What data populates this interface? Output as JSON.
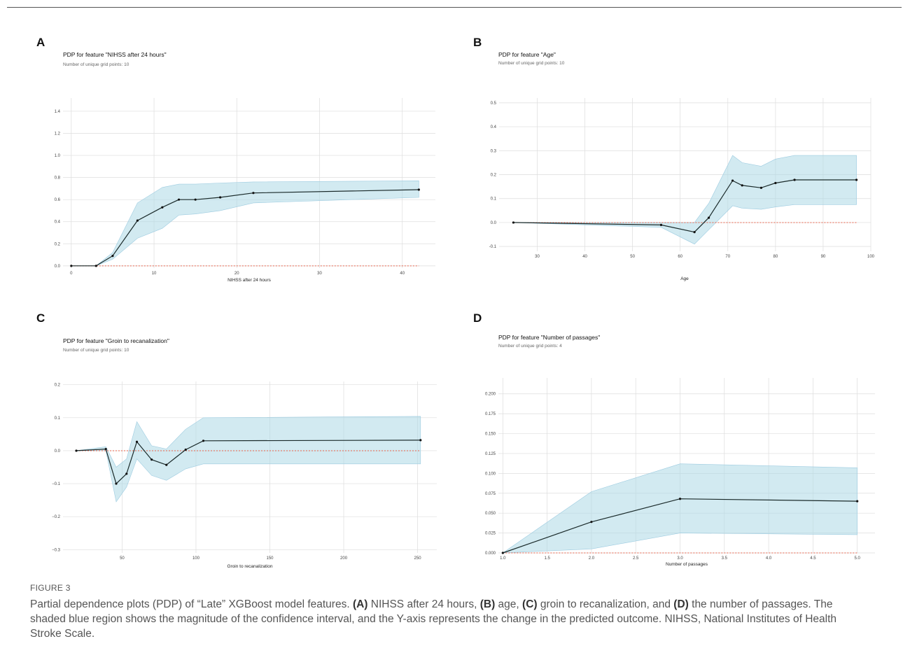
{
  "figure": {
    "label": "FIGURE 3",
    "caption": [
      {
        "t": "Partial dependence plots (PDP) of “Late” XGBoost model features. "
      },
      {
        "t": "(A)",
        "b": true
      },
      {
        "t": " NIHSS after 24 hours, "
      },
      {
        "t": "(B)",
        "b": true
      },
      {
        "t": " age, "
      },
      {
        "t": "(C)",
        "b": true
      },
      {
        "t": " groin to recanalization, and "
      },
      {
        "t": "(D)",
        "b": true
      },
      {
        "t": " the number of passages. The shaded blue region shows the magnitude of the confidence interval, and the Y-axis represents the change in the predicted outcome. NIHSS, National Institutes of Health Stroke Scale."
      }
    ]
  },
  "colors": {
    "band": "#add8e6",
    "line": "#1a2a2a",
    "zero": "#e8624a",
    "grid": "#dddddd"
  },
  "chart_data": [
    {
      "panel": "A",
      "type": "line",
      "title": "PDP for feature \"NIHSS after 24 hours\"",
      "subtitle": "Number of unique grid points: 10",
      "xlabel": "NIHSS after 24 hours",
      "ylabel": "",
      "xlim": [
        -1,
        44
      ],
      "ylim": [
        -0.02,
        1.52
      ],
      "xticks": [
        0,
        10,
        20,
        30,
        40
      ],
      "yticks": [
        0.0,
        0.2,
        0.4,
        0.6,
        0.8,
        1.0,
        1.2,
        1.4
      ],
      "ytick_labels": [
        "0.0",
        "0.2",
        "0.4",
        "0.6",
        "0.8",
        "1.0",
        "1.2",
        "1.4"
      ],
      "grid": true,
      "x": [
        0,
        3,
        5,
        8,
        11,
        13,
        15,
        18,
        22,
        42
      ],
      "y": [
        0.0,
        0.0,
        0.09,
        0.41,
        0.53,
        0.6,
        0.6,
        0.62,
        0.66,
        0.69
      ],
      "lower": [
        0.0,
        0.0,
        0.06,
        0.25,
        0.34,
        0.46,
        0.47,
        0.5,
        0.57,
        0.62
      ],
      "upper": [
        0.0,
        0.0,
        0.12,
        0.57,
        0.71,
        0.74,
        0.74,
        0.75,
        0.76,
        0.77
      ]
    },
    {
      "panel": "B",
      "type": "line",
      "title": "PDP for feature \"Age\"",
      "subtitle": "Number of unique grid points: 10",
      "xlabel": "Age",
      "ylabel": "",
      "xlim": [
        22,
        100
      ],
      "ylim": [
        -0.12,
        0.52
      ],
      "xticks": [
        30,
        40,
        50,
        60,
        70,
        80,
        90,
        100
      ],
      "yticks": [
        -0.1,
        0.0,
        0.1,
        0.2,
        0.3,
        0.4,
        0.5
      ],
      "ytick_labels": [
        "-0.1",
        "0.0",
        "0.1",
        "0.2",
        "0.3",
        "0.4",
        "0.5"
      ],
      "grid": true,
      "x": [
        25,
        56,
        63,
        66,
        71,
        73,
        77,
        80,
        84,
        97
      ],
      "y": [
        0.0,
        -0.01,
        -0.04,
        0.02,
        0.175,
        0.155,
        0.145,
        0.165,
        0.178,
        0.178
      ],
      "lower": [
        0.0,
        -0.02,
        -0.09,
        -0.03,
        0.07,
        0.06,
        0.055,
        0.065,
        0.075,
        0.075
      ],
      "upper": [
        0.0,
        0.0,
        0.0,
        0.08,
        0.28,
        0.25,
        0.235,
        0.265,
        0.28,
        0.28
      ]
    },
    {
      "panel": "C",
      "type": "line",
      "title": "PDP for feature \"Groin to recanalization\"",
      "subtitle": "Number of unique grid points: 10",
      "xlabel": "Groin to recanalization",
      "ylabel": "",
      "xlim": [
        10,
        263
      ],
      "ylim": [
        -0.31,
        0.21
      ],
      "xticks": [
        50,
        100,
        150,
        200,
        250
      ],
      "yticks": [
        -0.3,
        -0.2,
        -0.1,
        0.0,
        0.1,
        0.2
      ],
      "ytick_labels": [
        "−0.3",
        "−0.2",
        "−0.1",
        "0.0",
        "0.1",
        "0.2"
      ],
      "grid": true,
      "x": [
        19,
        39,
        46,
        53,
        60,
        70,
        80,
        93,
        105,
        252
      ],
      "y": [
        0.0,
        0.005,
        -0.1,
        -0.07,
        0.027,
        -0.027,
        -0.043,
        0.003,
        0.03,
        0.032
      ],
      "lower": [
        0.0,
        0.0,
        -0.155,
        -0.11,
        -0.025,
        -0.075,
        -0.09,
        -0.055,
        -0.04,
        -0.04
      ],
      "upper": [
        0.0,
        0.012,
        -0.05,
        -0.025,
        0.088,
        0.015,
        0.005,
        0.065,
        0.1,
        0.104
      ]
    },
    {
      "panel": "D",
      "type": "line",
      "title": "PDP for feature \"Number of passages\"",
      "subtitle": "Number of unique grid points: 4",
      "xlabel": "Number of passages",
      "ylabel": "",
      "xlim": [
        0.95,
        5.2
      ],
      "ylim": [
        0,
        0.22
      ],
      "xticks": [
        1.0,
        1.5,
        2.0,
        2.5,
        3.0,
        3.5,
        4.0,
        4.5,
        5.0
      ],
      "xtick_labels": [
        "1.0",
        "1.5",
        "2.0",
        "2.5",
        "3.0",
        "3.5",
        "4.0",
        "4.5",
        "5.0"
      ],
      "yticks": [
        0.0,
        0.025,
        0.05,
        0.075,
        0.1,
        0.125,
        0.15,
        0.175,
        0.2
      ],
      "ytick_labels": [
        "0.000",
        "0.025",
        "0.050",
        "0.075",
        "0.100",
        "0.125",
        "0.150",
        "0.175",
        "0.200"
      ],
      "grid": true,
      "x": [
        1.0,
        2.0,
        3.0,
        5.0
      ],
      "y": [
        0.0,
        0.039,
        0.068,
        0.065
      ],
      "lower": [
        0.0,
        0.005,
        0.025,
        0.023
      ],
      "upper": [
        0.0,
        0.077,
        0.112,
        0.107
      ]
    }
  ]
}
